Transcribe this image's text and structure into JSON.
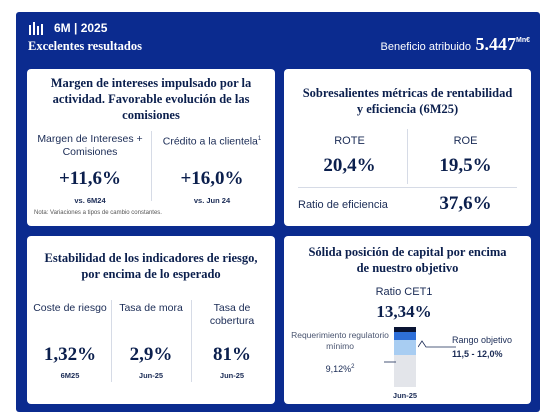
{
  "header": {
    "period": "6M | 2025",
    "title": "Excelentes resultados",
    "profit_label": "Beneficio atribuido",
    "profit_value": "5.447",
    "profit_unit": "Mn€"
  },
  "cards": [
    {
      "title": "Margen de intereses impulsado por la actividad. Favorable evolución de las comisiones",
      "metrics": [
        {
          "label": "Margen de Intereses + Comisiones",
          "value": "+11,6%",
          "note": "vs. 6M24"
        },
        {
          "label": "Crédito a la clientela",
          "footnote": "1",
          "value": "+16,0%",
          "note": "vs. Jun 24"
        }
      ],
      "footer": "Nota: Variaciones a tipos de cambio constantes."
    },
    {
      "title": "Sobresalientes métricas de rentabilidad y eficiencia (6M25)",
      "metrics": [
        {
          "label": "ROTE",
          "value": "20,4%"
        },
        {
          "label": "ROE",
          "value": "19,5%"
        },
        {
          "label": "Ratio de eficiencia",
          "value": "37,6%"
        }
      ]
    },
    {
      "title": "Estabilidad de los indicadores de riesgo, por encima de lo esperado",
      "metrics": [
        {
          "label": "Coste de riesgo",
          "value": "1,32%",
          "note": "6M25"
        },
        {
          "label": "Tasa de mora",
          "value": "2,9%",
          "note": "Jun-25"
        },
        {
          "label": "Tasa de cobertura",
          "value": "81%",
          "note": "Jun-25"
        }
      ]
    },
    {
      "title": "Sólida posición de capital por encima de nuestro objetivo",
      "ratio_label": "Ratio CET1",
      "ratio_value": "13,34%",
      "requirement_label": "Requerimiento regulatorio mínimo",
      "requirement_value": "9,12%",
      "requirement_footnote": "2",
      "target_label": "Rango objetivo",
      "target_value": "11,5 - 12,0%",
      "date": "Jun-25"
    }
  ]
}
